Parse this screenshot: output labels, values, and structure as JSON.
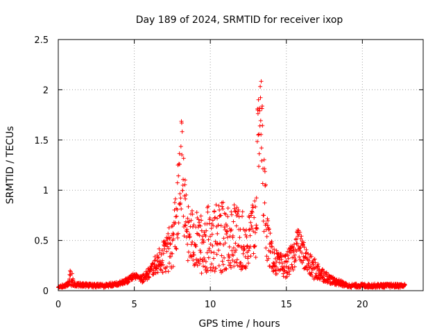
{
  "chart_data": {
    "type": "scatter",
    "title": "Day 189 of 2024, SRMTID for receiver ixop",
    "xlabel": "GPS time / hours",
    "ylabel": "SRMTID / TECUs",
    "xlim": [
      0,
      24
    ],
    "ylim": [
      0,
      2.5
    ],
    "xticks": [
      0,
      5,
      10,
      15,
      20
    ],
    "yticks": [
      0,
      0.5,
      1,
      1.5,
      2,
      2.5
    ],
    "xtick_labels": [
      "0",
      "5",
      "10",
      "15",
      "20"
    ],
    "ytick_labels": [
      "0",
      "0.5",
      "1",
      "1.5",
      "2",
      "2.5"
    ],
    "grid": true,
    "marker": "+",
    "series": [
      {
        "name": "SRMTID",
        "color": "#ff0000",
        "envelope_x": [
          0.0,
          0.5,
          0.7,
          0.8,
          0.9,
          1.0,
          1.3,
          2.0,
          3.0,
          4.0,
          4.5,
          5.0,
          5.5,
          6.0,
          6.5,
          7.0,
          7.5,
          7.8,
          8.0,
          8.1,
          8.2,
          8.3,
          8.5,
          9.0,
          9.5,
          10.0,
          10.5,
          11.0,
          11.5,
          12.0,
          12.5,
          13.0,
          13.1,
          13.2,
          13.3,
          13.4,
          13.5,
          13.8,
          14.0,
          14.5,
          15.0,
          15.5,
          15.7,
          16.0,
          16.5,
          17.0,
          17.5,
          18.0,
          18.5,
          19.0,
          19.5,
          20.0,
          21.0,
          22.0,
          22.8
        ],
        "envelope_y": [
          0.04,
          0.05,
          0.08,
          0.15,
          0.12,
          0.06,
          0.06,
          0.05,
          0.05,
          0.07,
          0.1,
          0.15,
          0.12,
          0.18,
          0.28,
          0.35,
          0.45,
          0.75,
          1.0,
          1.3,
          1.1,
          0.85,
          0.55,
          0.5,
          0.45,
          0.55,
          0.5,
          0.55,
          0.55,
          0.5,
          0.45,
          0.7,
          1.2,
          1.7,
          1.9,
          1.5,
          1.0,
          0.5,
          0.35,
          0.25,
          0.25,
          0.35,
          0.5,
          0.4,
          0.25,
          0.2,
          0.15,
          0.1,
          0.08,
          0.05,
          0.05,
          0.05,
          0.05,
          0.05,
          0.05
        ],
        "spread": [
          0.01,
          0.02,
          0.03,
          0.1,
          0.08,
          0.02,
          0.02,
          0.02,
          0.02,
          0.02,
          0.03,
          0.03,
          0.04,
          0.06,
          0.1,
          0.18,
          0.25,
          0.4,
          0.45,
          0.45,
          0.4,
          0.35,
          0.3,
          0.3,
          0.3,
          0.35,
          0.35,
          0.35,
          0.35,
          0.3,
          0.3,
          0.4,
          0.6,
          0.45,
          0.35,
          0.5,
          0.5,
          0.25,
          0.15,
          0.12,
          0.12,
          0.15,
          0.15,
          0.15,
          0.12,
          0.1,
          0.06,
          0.04,
          0.03,
          0.02,
          0.02,
          0.02,
          0.02,
          0.02,
          0.02
        ],
        "n_points": 1400
      }
    ]
  }
}
